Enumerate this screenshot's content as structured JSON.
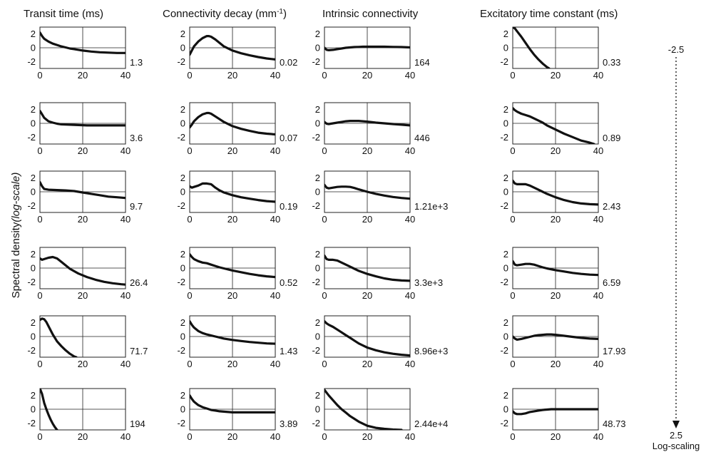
{
  "figure": {
    "ylabel_main": "Spectral density",
    "ylabel_scale": "(log-scale)",
    "scale_top": "-2.5",
    "scale_bottom": "2.5",
    "scale_caption": "Log-scaling"
  },
  "chart_data": [
    {
      "type": "line",
      "title": "Transit time (ms)",
      "x_ticks": [
        0,
        20,
        40
      ],
      "y_ticks": [
        2,
        0,
        -2
      ],
      "xlim": [
        0,
        40
      ],
      "ylim": [
        -3,
        3
      ],
      "grid": true,
      "panels": [
        {
          "label": "1.3",
          "x": [
            0,
            1,
            2,
            4,
            6,
            8,
            10,
            12,
            14,
            16,
            20,
            24,
            28,
            32,
            36,
            40
          ],
          "y": [
            2.2,
            1.7,
            1.3,
            0.9,
            0.6,
            0.4,
            0.2,
            0.05,
            -0.1,
            -0.2,
            -0.4,
            -0.55,
            -0.65,
            -0.7,
            -0.75,
            -0.75
          ]
        },
        {
          "label": "3.6",
          "x": [
            0,
            1,
            2,
            4,
            6,
            8,
            10,
            14,
            18,
            22,
            26,
            30,
            34,
            38,
            40
          ],
          "y": [
            1.8,
            1.3,
            0.8,
            0.3,
            0.1,
            -0.05,
            -0.15,
            -0.2,
            -0.25,
            -0.3,
            -0.3,
            -0.3,
            -0.3,
            -0.3,
            -0.3
          ]
        },
        {
          "label": "9.7",
          "x": [
            0,
            1,
            2,
            4,
            8,
            12,
            16,
            20,
            24,
            28,
            32,
            36,
            40
          ],
          "y": [
            1.4,
            0.8,
            0.4,
            0.3,
            0.25,
            0.2,
            0.1,
            -0.1,
            -0.3,
            -0.5,
            -0.7,
            -0.8,
            -0.9
          ]
        },
        {
          "label": "26.4",
          "x": [
            0,
            1,
            2,
            4,
            6,
            8,
            10,
            12,
            14,
            18,
            22,
            26,
            30,
            34,
            38,
            40
          ],
          "y": [
            1.4,
            1.2,
            1.3,
            1.5,
            1.6,
            1.4,
            0.9,
            0.4,
            -0.1,
            -0.8,
            -1.3,
            -1.7,
            -2.0,
            -2.2,
            -2.35,
            -2.4
          ]
        },
        {
          "label": "71.7",
          "x": [
            0,
            1,
            2,
            3,
            4,
            6,
            8,
            10,
            12,
            14,
            16,
            17
          ],
          "y": [
            2.4,
            2.6,
            2.5,
            2.1,
            1.5,
            0.3,
            -0.7,
            -1.4,
            -2.0,
            -2.5,
            -2.9,
            -3.0
          ]
        },
        {
          "label": "194",
          "x": [
            0,
            1,
            2,
            3,
            4,
            5,
            6,
            7,
            8
          ],
          "y": [
            3.0,
            2.2,
            0.9,
            0.0,
            -0.8,
            -1.5,
            -2.1,
            -2.6,
            -3.0
          ]
        }
      ]
    },
    {
      "type": "line",
      "title": "Connectivity decay (mm",
      "title_sup": "-1",
      "title_end": ")",
      "x_ticks": [
        0,
        20,
        40
      ],
      "y_ticks": [
        2,
        0,
        -2
      ],
      "xlim": [
        0,
        40
      ],
      "ylim": [
        -3,
        3
      ],
      "grid": true,
      "panels": [
        {
          "label": "0.02",
          "x": [
            0,
            1,
            2,
            4,
            6,
            8,
            9,
            10,
            12,
            14,
            16,
            20,
            24,
            28,
            32,
            36,
            40
          ],
          "y": [
            -1.0,
            -0.4,
            0.2,
            0.9,
            1.4,
            1.7,
            1.7,
            1.6,
            1.2,
            0.7,
            0.2,
            -0.4,
            -0.8,
            -1.1,
            -1.35,
            -1.55,
            -1.7
          ]
        },
        {
          "label": "0.07",
          "x": [
            0,
            1,
            2,
            4,
            6,
            8,
            9,
            10,
            12,
            14,
            16,
            20,
            24,
            28,
            32,
            36,
            40
          ],
          "y": [
            -0.6,
            -0.2,
            0.3,
            0.9,
            1.3,
            1.5,
            1.5,
            1.4,
            1.0,
            0.6,
            0.2,
            -0.4,
            -0.8,
            -1.1,
            -1.35,
            -1.5,
            -1.6
          ]
        },
        {
          "label": "0.19",
          "x": [
            0,
            1,
            2,
            4,
            6,
            8,
            10,
            12,
            14,
            16,
            20,
            24,
            28,
            32,
            36,
            40
          ],
          "y": [
            0.8,
            0.6,
            0.7,
            0.9,
            1.2,
            1.2,
            1.1,
            0.6,
            0.2,
            -0.1,
            -0.5,
            -0.8,
            -1.0,
            -1.2,
            -1.35,
            -1.45
          ]
        },
        {
          "label": "0.52",
          "x": [
            0,
            1,
            2,
            4,
            6,
            8,
            10,
            12,
            14,
            16,
            20,
            24,
            28,
            32,
            36,
            40
          ],
          "y": [
            2.0,
            1.6,
            1.3,
            1.0,
            0.8,
            0.7,
            0.5,
            0.3,
            0.1,
            -0.05,
            -0.35,
            -0.6,
            -0.85,
            -1.05,
            -1.2,
            -1.3
          ]
        },
        {
          "label": "1.43",
          "x": [
            0,
            1,
            2,
            4,
            6,
            8,
            10,
            12,
            14,
            16,
            20,
            24,
            28,
            32,
            36,
            40
          ],
          "y": [
            2.2,
            1.7,
            1.3,
            0.8,
            0.5,
            0.3,
            0.15,
            0.0,
            -0.15,
            -0.3,
            -0.5,
            -0.65,
            -0.8,
            -0.9,
            -1.0,
            -1.05
          ]
        },
        {
          "label": "3.89",
          "x": [
            0,
            1,
            2,
            4,
            6,
            8,
            10,
            12,
            14,
            16,
            18,
            20,
            24,
            28,
            32,
            36,
            40
          ],
          "y": [
            2.0,
            1.5,
            1.1,
            0.6,
            0.3,
            0.1,
            -0.1,
            -0.2,
            -0.3,
            -0.35,
            -0.4,
            -0.45,
            -0.45,
            -0.45,
            -0.45,
            -0.45,
            -0.45
          ]
        }
      ]
    },
    {
      "type": "line",
      "title": "Intrinsic connectivity",
      "x_ticks": [
        0,
        20,
        40
      ],
      "y_ticks": [
        2,
        0,
        -2
      ],
      "xlim": [
        0,
        40
      ],
      "ylim": [
        -3,
        3
      ],
      "grid": true,
      "panels": [
        {
          "label": "164",
          "x": [
            0,
            1,
            2,
            4,
            6,
            8,
            10,
            12,
            14,
            16,
            18,
            20,
            24,
            28,
            32,
            36,
            40
          ],
          "y": [
            0.0,
            -0.3,
            -0.35,
            -0.3,
            -0.2,
            -0.1,
            0.0,
            0.05,
            0.1,
            0.12,
            0.15,
            0.15,
            0.15,
            0.15,
            0.12,
            0.1,
            0.05
          ]
        },
        {
          "label": "446",
          "x": [
            0,
            1,
            2,
            4,
            6,
            8,
            10,
            12,
            14,
            16,
            18,
            20,
            24,
            28,
            32,
            36,
            40
          ],
          "y": [
            0.2,
            -0.05,
            -0.1,
            0.0,
            0.1,
            0.2,
            0.3,
            0.35,
            0.35,
            0.35,
            0.3,
            0.25,
            0.1,
            0.0,
            -0.1,
            -0.2,
            -0.3
          ]
        },
        {
          "label": "1.21e+3",
          "x": [
            0,
            1,
            2,
            4,
            6,
            8,
            10,
            12,
            14,
            16,
            20,
            24,
            28,
            32,
            36,
            40
          ],
          "y": [
            1.0,
            0.6,
            0.5,
            0.6,
            0.7,
            0.75,
            0.75,
            0.7,
            0.55,
            0.35,
            0.0,
            -0.3,
            -0.55,
            -0.75,
            -0.9,
            -1.0
          ]
        },
        {
          "label": "3.3e+3",
          "x": [
            0,
            1,
            2,
            4,
            6,
            8,
            10,
            12,
            14,
            16,
            20,
            24,
            28,
            32,
            36,
            40
          ],
          "y": [
            1.8,
            1.3,
            1.2,
            1.2,
            1.1,
            0.8,
            0.5,
            0.2,
            -0.1,
            -0.4,
            -0.85,
            -1.2,
            -1.5,
            -1.7,
            -1.8,
            -1.85
          ]
        },
        {
          "label": "8.96e+3",
          "x": [
            0,
            1,
            2,
            4,
            6,
            8,
            10,
            12,
            14,
            16,
            20,
            24,
            28,
            32,
            36,
            40
          ],
          "y": [
            2.2,
            1.9,
            1.7,
            1.4,
            1.0,
            0.6,
            0.2,
            -0.2,
            -0.6,
            -1.0,
            -1.6,
            -2.0,
            -2.3,
            -2.5,
            -2.65,
            -2.75
          ]
        },
        {
          "label": "2.44e+4",
          "x": [
            0,
            1,
            2,
            4,
            6,
            8,
            10,
            12,
            14,
            16,
            18,
            20,
            24,
            28,
            32,
            36
          ],
          "y": [
            2.8,
            2.4,
            2.0,
            1.3,
            0.6,
            0.0,
            -0.5,
            -1.0,
            -1.4,
            -1.8,
            -2.1,
            -2.4,
            -2.7,
            -2.85,
            -2.95,
            -3.0
          ]
        }
      ]
    },
    {
      "type": "line",
      "title": "Excitatory time constant (ms)",
      "x_ticks": [
        0,
        20,
        40
      ],
      "y_ticks": [
        2,
        0,
        -2
      ],
      "xlim": [
        0,
        40
      ],
      "ylim": [
        -3,
        3
      ],
      "grid": true,
      "panels": [
        {
          "label": "0.33",
          "x": [
            0,
            1,
            2,
            4,
            6,
            8,
            10,
            12,
            14,
            16,
            17
          ],
          "y": [
            3.0,
            2.8,
            2.4,
            1.6,
            0.7,
            -0.2,
            -1.0,
            -1.7,
            -2.3,
            -2.8,
            -3.0
          ]
        },
        {
          "label": "0.89",
          "x": [
            0,
            1,
            2,
            4,
            6,
            8,
            10,
            12,
            14,
            16,
            20,
            24,
            28,
            32,
            36,
            38
          ],
          "y": [
            2.2,
            1.9,
            1.7,
            1.4,
            1.2,
            1.0,
            0.7,
            0.4,
            0.1,
            -0.3,
            -0.9,
            -1.5,
            -2.0,
            -2.5,
            -2.8,
            -3.0
          ]
        },
        {
          "label": "2.43",
          "x": [
            0,
            1,
            2,
            4,
            6,
            8,
            10,
            12,
            14,
            16,
            20,
            24,
            28,
            32,
            36,
            40
          ],
          "y": [
            1.6,
            1.2,
            1.1,
            1.1,
            1.1,
            0.9,
            0.6,
            0.3,
            0.0,
            -0.3,
            -0.8,
            -1.2,
            -1.5,
            -1.7,
            -1.8,
            -1.85
          ]
        },
        {
          "label": "6.59",
          "x": [
            0,
            1,
            2,
            4,
            6,
            8,
            10,
            12,
            14,
            16,
            20,
            24,
            28,
            32,
            36,
            40
          ],
          "y": [
            1.0,
            0.5,
            0.4,
            0.5,
            0.6,
            0.6,
            0.5,
            0.3,
            0.1,
            -0.05,
            -0.3,
            -0.5,
            -0.7,
            -0.85,
            -0.95,
            -1.0
          ]
        },
        {
          "label": "17.93",
          "x": [
            0,
            1,
            2,
            4,
            6,
            8,
            10,
            12,
            14,
            16,
            18,
            20,
            24,
            28,
            32,
            36,
            40
          ],
          "y": [
            0.0,
            -0.3,
            -0.45,
            -0.35,
            -0.2,
            -0.05,
            0.1,
            0.2,
            0.25,
            0.3,
            0.3,
            0.25,
            0.1,
            -0.05,
            -0.2,
            -0.3,
            -0.35
          ]
        },
        {
          "label": "48.73",
          "x": [
            0,
            1,
            2,
            4,
            6,
            8,
            10,
            12,
            14,
            16,
            18,
            20,
            24,
            28,
            32,
            36,
            40
          ],
          "y": [
            -0.3,
            -0.6,
            -0.7,
            -0.7,
            -0.6,
            -0.4,
            -0.3,
            -0.2,
            -0.1,
            -0.05,
            0.0,
            0.0,
            0.0,
            0.0,
            0.0,
            0.0,
            0.0
          ]
        }
      ]
    }
  ]
}
